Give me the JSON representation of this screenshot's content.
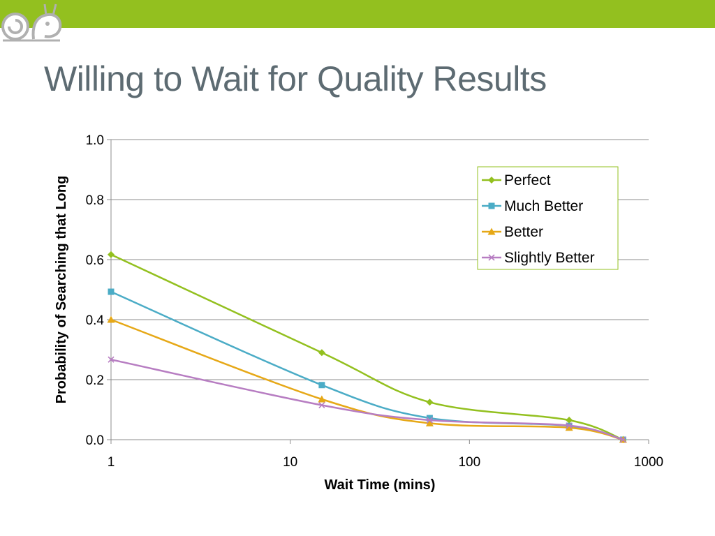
{
  "slide": {
    "title": "Willing to Wait for Quality Results",
    "accent_color": "#93c01f",
    "title_color": "#5d6b72"
  },
  "chart_data": {
    "type": "line",
    "title": "",
    "xlabel": "Wait Time (mins)",
    "ylabel": "Probability of Searching that Long",
    "x_scale": "log",
    "xlim": [
      1,
      1000
    ],
    "ylim": [
      0,
      1.0
    ],
    "x_ticks": [
      1,
      10,
      100,
      1000
    ],
    "x_tick_labels": [
      "1",
      "10",
      "100",
      "1000"
    ],
    "y_ticks": [
      0,
      0.2,
      0.4,
      0.6,
      0.8,
      1.0
    ],
    "y_tick_labels": [
      "0.0",
      "0.2",
      "0.4",
      "0.6",
      "0.8",
      "1.0"
    ],
    "grid": "horizontal",
    "legend_position": "top-right",
    "x": [
      1,
      15,
      60,
      360,
      720
    ],
    "series": [
      {
        "name": "Perfect",
        "color": "#93c01f",
        "marker": "diamond",
        "values": [
          0.617,
          0.29,
          0.125,
          0.065,
          0.0
        ]
      },
      {
        "name": "Much Better",
        "color": "#4bacc6",
        "marker": "square",
        "values": [
          0.493,
          0.182,
          0.072,
          0.046,
          0.0
        ]
      },
      {
        "name": "Better",
        "color": "#e6a817",
        "marker": "triangle",
        "values": [
          0.4,
          0.135,
          0.055,
          0.04,
          0.0
        ]
      },
      {
        "name": "Slightly Better",
        "color": "#b77dc2",
        "marker": "x",
        "values": [
          0.267,
          0.115,
          0.065,
          0.047,
          0.0
        ]
      }
    ]
  }
}
